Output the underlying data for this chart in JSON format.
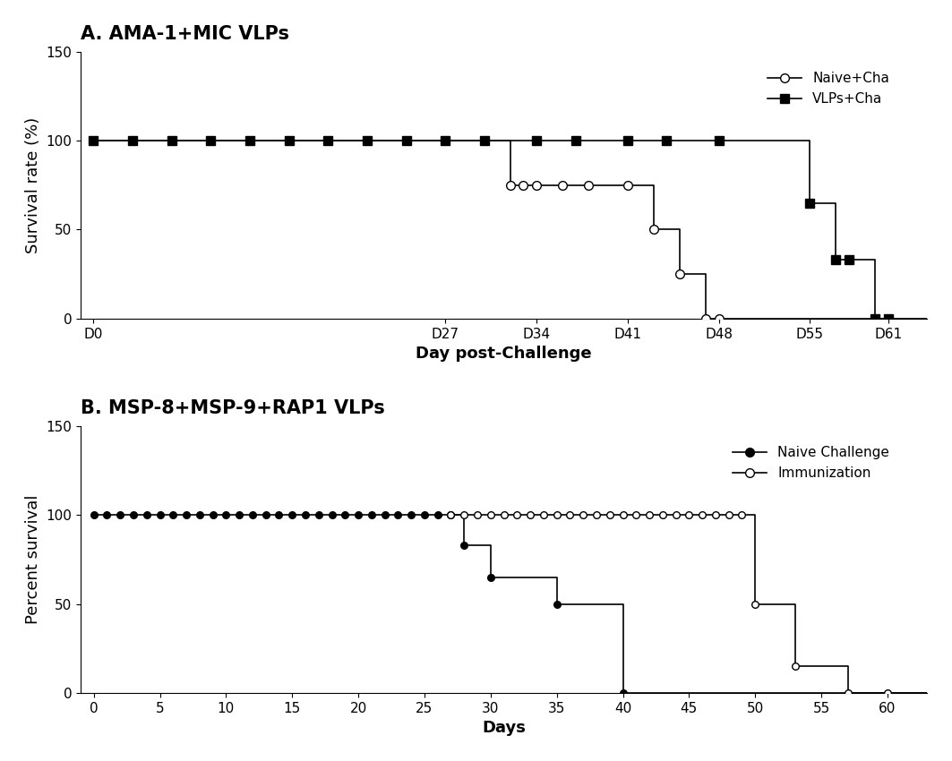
{
  "panel_a": {
    "title": "A. AMA-1+MIC VLPs",
    "xlabel": "Day post-Challenge",
    "ylabel": "Survival rate (%)",
    "ylim": [
      0,
      150
    ],
    "yticks": [
      0,
      50,
      100,
      150
    ],
    "xtick_positions": [
      0,
      27,
      34,
      41,
      48,
      55,
      61
    ],
    "xtick_labels": [
      "D0",
      "D27",
      "D34",
      "D41",
      "D48",
      "D55",
      "D61"
    ],
    "xlim": [
      -1,
      64
    ],
    "naive_line_x": [
      0,
      27,
      32,
      32,
      41,
      41,
      43,
      43,
      45,
      45,
      47,
      47,
      48,
      48,
      64
    ],
    "naive_line_y": [
      100,
      100,
      100,
      75,
      75,
      75,
      75,
      50,
      50,
      25,
      25,
      0,
      0,
      0,
      0
    ],
    "naive_mk_x": [
      0,
      27,
      32,
      33,
      34,
      36,
      38,
      41,
      43,
      45,
      47,
      48
    ],
    "naive_mk_y": [
      100,
      100,
      75,
      75,
      75,
      75,
      75,
      75,
      50,
      25,
      0,
      0
    ],
    "vlps_line_x": [
      0,
      3,
      6,
      9,
      12,
      15,
      18,
      21,
      24,
      27,
      30,
      34,
      37,
      41,
      44,
      48,
      52,
      53,
      53,
      55,
      55,
      57,
      57,
      58,
      58,
      60,
      60,
      61,
      61,
      64
    ],
    "vlps_line_y": [
      100,
      100,
      100,
      100,
      100,
      100,
      100,
      100,
      100,
      100,
      100,
      100,
      100,
      100,
      100,
      100,
      100,
      100,
      100,
      100,
      65,
      65,
      33,
      33,
      33,
      33,
      0,
      0,
      0,
      0
    ],
    "vlps_mk_x": [
      0,
      3,
      6,
      9,
      12,
      15,
      18,
      21,
      24,
      27,
      30,
      34,
      37,
      41,
      44,
      48,
      55,
      57,
      58,
      60,
      61
    ],
    "vlps_mk_y": [
      100,
      100,
      100,
      100,
      100,
      100,
      100,
      100,
      100,
      100,
      100,
      100,
      100,
      100,
      100,
      100,
      65,
      33,
      33,
      0,
      0
    ],
    "legend_naive": "Naive+Cha",
    "legend_vlps": "VLPs+Cha"
  },
  "panel_b": {
    "title": "B. MSP-8+MSP-9+RAP1 VLPs",
    "xlabel": "Days",
    "ylabel": "Percent survival",
    "ylim": [
      0,
      150
    ],
    "yticks": [
      0,
      50,
      100,
      150
    ],
    "xticks": [
      0,
      5,
      10,
      15,
      20,
      25,
      30,
      35,
      40,
      45,
      50,
      55,
      60
    ],
    "xlim": [
      -1,
      63
    ],
    "naive_line_x": [
      0,
      28,
      28,
      30,
      30,
      35,
      35,
      40,
      40,
      42,
      42,
      63
    ],
    "naive_line_y": [
      100,
      100,
      83,
      83,
      65,
      65,
      50,
      50,
      0,
      0,
      0,
      0
    ],
    "naive_mk_x": [
      0,
      1,
      2,
      3,
      4,
      5,
      6,
      7,
      8,
      9,
      10,
      11,
      12,
      13,
      14,
      15,
      16,
      17,
      18,
      19,
      20,
      21,
      22,
      23,
      24,
      25,
      26,
      27,
      28,
      30,
      35,
      40
    ],
    "naive_mk_y": [
      100,
      100,
      100,
      100,
      100,
      100,
      100,
      100,
      100,
      100,
      100,
      100,
      100,
      100,
      100,
      100,
      100,
      100,
      100,
      100,
      100,
      100,
      100,
      100,
      100,
      100,
      100,
      100,
      83,
      65,
      50,
      0
    ],
    "immun_line_x": [
      27,
      50,
      50,
      53,
      53,
      57,
      57,
      60,
      60,
      63
    ],
    "immun_line_y": [
      100,
      100,
      50,
      50,
      15,
      15,
      0,
      0,
      0,
      0
    ],
    "immun_mk_x": [
      27,
      28,
      29,
      30,
      31,
      32,
      33,
      34,
      35,
      36,
      37,
      38,
      39,
      40,
      41,
      42,
      43,
      44,
      45,
      46,
      47,
      48,
      49,
      50,
      53,
      57,
      60
    ],
    "immun_mk_y": [
      100,
      100,
      100,
      100,
      100,
      100,
      100,
      100,
      100,
      100,
      100,
      100,
      100,
      100,
      100,
      100,
      100,
      100,
      100,
      100,
      100,
      100,
      100,
      50,
      15,
      0,
      0
    ],
    "legend_naive": "Naive Challenge",
    "legend_immun": "Immunization"
  },
  "title_fontsize": 15,
  "label_fontsize": 13,
  "tick_fontsize": 11,
  "legend_fontsize": 11
}
